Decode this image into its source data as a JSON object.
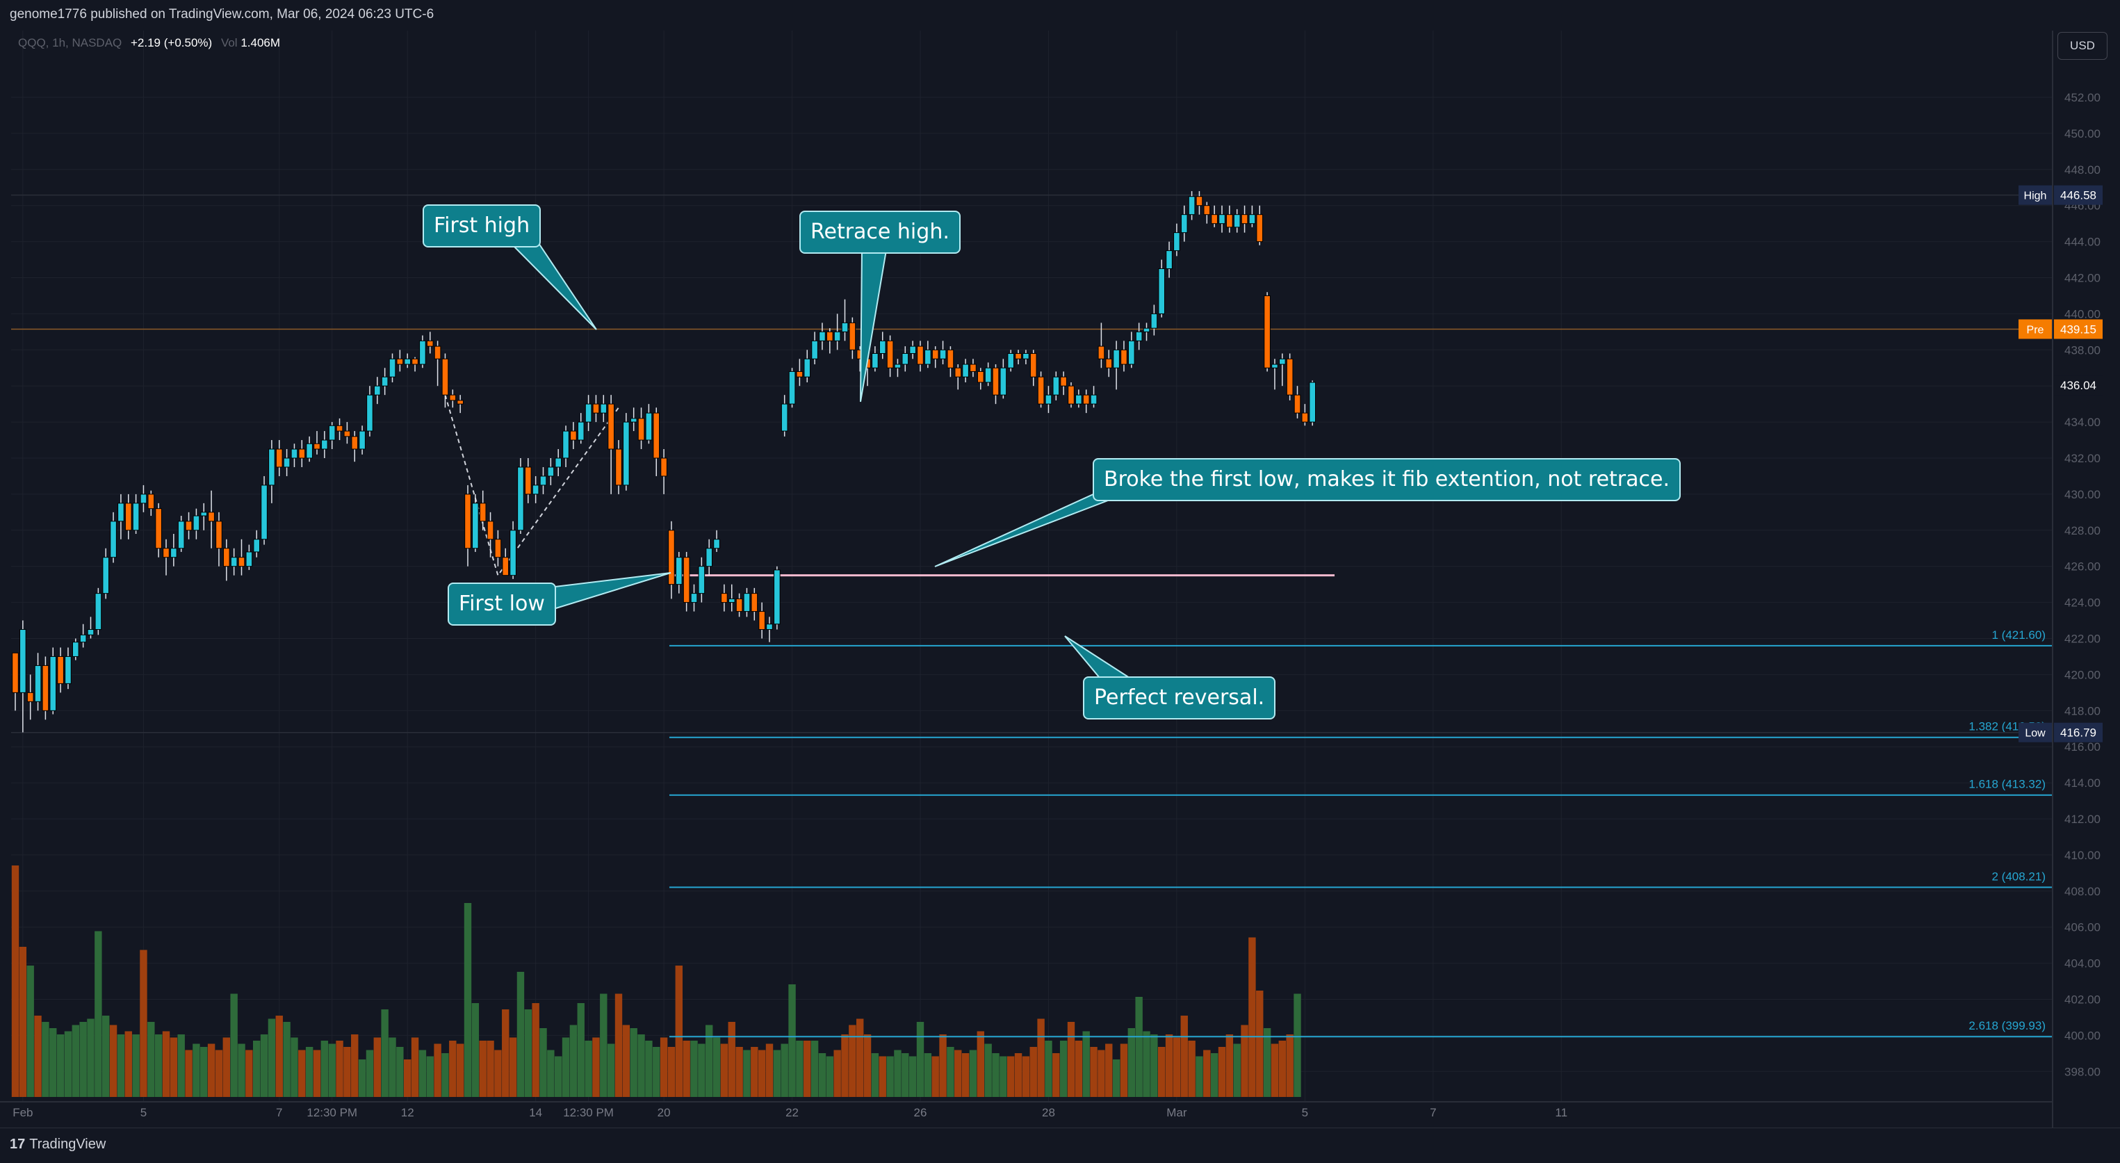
{
  "header": {
    "published": "genome1776 published on TradingView.com, Mar 06, 2024 06:23 UTC-6"
  },
  "legend": {
    "symbol": "QQQ, 1h, NASDAQ",
    "change": "+2.19 (+0.50%)",
    "vol_label": "Vol",
    "vol_value": "1.406M"
  },
  "currency": "USD",
  "footer": {
    "logo": "17",
    "brand": "TradingView"
  },
  "colors": {
    "up": "#22ab94",
    "up_body": "#26c6da",
    "down": "#f7525f",
    "down_body": "#ff6d00",
    "background": "#131722",
    "grid": "#1e222d",
    "callout": "#0e7f8c",
    "fib": "#26a6d1",
    "vol_up": "#2e6b3a",
    "vol_down": "#a0400f"
  },
  "callouts": {
    "first_high": "First high",
    "retrace_high": "Retrace high.",
    "broke_low": "Broke the first low, makes it fib extention, not retrace.",
    "first_low": "First low",
    "perfect_reversal": "Perfect reversal."
  },
  "chart_data": {
    "type": "candlestick",
    "symbol": "QQQ",
    "interval": "1h",
    "exchange": "NASDAQ",
    "y_axis": {
      "range": [
        397,
        454
      ],
      "ticks": [
        398,
        400,
        402,
        404,
        406,
        408,
        410,
        412,
        414,
        416,
        418,
        420,
        422,
        424,
        426,
        428,
        430,
        432,
        434,
        436,
        438,
        440,
        442,
        444,
        446,
        448,
        450,
        452
      ],
      "tick_labels": [
        "398.00",
        "400.00",
        "402.00",
        "404.00",
        "406.00",
        "408.00",
        "410.00",
        "412.00",
        "414.00",
        "416.00",
        "418.00",
        "420.00",
        "422.00",
        "424.00",
        "426.00",
        "428.00",
        "430.00",
        "432.00",
        "434.00",
        "436.00",
        "438.00",
        "440.00",
        "442.00",
        "444.00",
        "446.00",
        "448.00",
        "450.00",
        "452.00"
      ]
    },
    "x_axis": {
      "ticks": [
        {
          "label": "Feb",
          "bar": 1
        },
        {
          "label": "5",
          "bar": 17
        },
        {
          "label": "7",
          "bar": 35
        },
        {
          "label": "12:30 PM",
          "bar": 42
        },
        {
          "label": "12",
          "bar": 52
        },
        {
          "label": "14",
          "bar": 69
        },
        {
          "label": "12:30 PM",
          "bar": 76
        },
        {
          "label": "20",
          "bar": 86
        },
        {
          "label": "22",
          "bar": 103
        },
        {
          "label": "26",
          "bar": 120
        },
        {
          "label": "28",
          "bar": 137
        },
        {
          "label": "Mar",
          "bar": 154
        },
        {
          "label": "5",
          "bar": 171
        },
        {
          "label": "7",
          "bar": 188
        },
        {
          "label": "11",
          "bar": 205
        }
      ]
    },
    "price_labels": [
      {
        "tag": "High",
        "value": "446.58",
        "level": 446.58
      },
      {
        "tag": "Pre",
        "value": "439.15",
        "level": 439.15
      },
      {
        "tag": "",
        "value": "436.04",
        "level": 436.04
      },
      {
        "tag": "Low",
        "value": "416.79",
        "level": 416.79
      }
    ],
    "horizontal_lines": [
      {
        "name": "first-low-line",
        "level": 425.5
      }
    ],
    "fib_levels": [
      {
        "label": "1 (421.60)",
        "level": 421.6
      },
      {
        "label": "1.382 (416.52)",
        "level": 416.52
      },
      {
        "label": "1.618 (413.32)",
        "level": 413.32
      },
      {
        "label": "2 (408.21)",
        "level": 408.21
      },
      {
        "label": "2.618 (399.93)",
        "level": 399.93
      }
    ],
    "candles": [
      [
        421.2,
        419,
        420.5,
        418
      ],
      [
        419,
        422.5,
        423,
        416.8
      ],
      [
        419,
        418.5,
        420,
        417.5
      ],
      [
        418.5,
        420.5,
        421.2,
        418
      ],
      [
        420.5,
        418,
        421,
        417.5
      ],
      [
        418,
        421,
        421.5,
        417.8
      ],
      [
        421,
        419.5,
        421.5,
        419
      ],
      [
        419.5,
        421,
        421.5,
        419.2
      ],
      [
        421,
        421.8,
        422,
        420.8
      ],
      [
        421.8,
        422.2,
        422.8,
        421.5
      ],
      [
        422.2,
        422.5,
        423.2,
        422
      ],
      [
        422.5,
        424.5,
        424.8,
        422.2
      ],
      [
        424.5,
        426.5,
        427,
        424.2
      ],
      [
        426.5,
        428.5,
        429,
        426.2
      ],
      [
        428.5,
        429.5,
        430,
        427.5
      ],
      [
        429.5,
        428,
        430,
        427.5
      ],
      [
        428,
        429.5,
        430,
        427.8
      ],
      [
        429.5,
        430,
        430.5,
        429
      ],
      [
        430,
        429.2,
        430.2,
        428.8
      ],
      [
        429.2,
        427,
        429.5,
        426.5
      ],
      [
        427,
        426.5,
        427.5,
        425.5
      ],
      [
        426.5,
        427,
        427.8,
        426
      ],
      [
        427,
        428.5,
        428.8,
        426.8
      ],
      [
        428.5,
        428,
        429,
        427.5
      ],
      [
        428,
        428.8,
        429.2,
        427.5
      ],
      [
        428.8,
        429,
        429.5,
        428
      ],
      [
        429,
        428.5,
        430.2,
        427
      ],
      [
        428.5,
        427,
        429,
        426
      ],
      [
        427,
        426,
        427.5,
        425.2
      ],
      [
        426,
        426.5,
        427,
        425.5
      ],
      [
        426.5,
        426,
        427.5,
        425.5
      ],
      [
        426,
        426.8,
        427.2,
        425.8
      ],
      [
        426.8,
        427.5,
        428,
        426.5
      ],
      [
        427.5,
        430.5,
        431,
        427.2
      ],
      [
        430.5,
        432.5,
        433,
        429.5
      ],
      [
        432.5,
        431.5,
        433,
        431
      ],
      [
        431.5,
        432,
        432.5,
        431
      ],
      [
        432,
        432.5,
        432.8,
        431.5
      ],
      [
        432.5,
        432,
        433,
        431.5
      ],
      [
        432,
        432.8,
        433.2,
        431.8
      ],
      [
        432.8,
        432.5,
        433.5,
        432.2
      ],
      [
        432.5,
        433,
        433.5,
        432
      ],
      [
        433,
        433.8,
        434,
        432.5
      ],
      [
        433.8,
        433.5,
        434.2,
        433
      ],
      [
        433.5,
        433.2,
        434,
        432.8
      ],
      [
        433.2,
        432.5,
        433.5,
        431.8
      ],
      [
        432.5,
        433.5,
        433.8,
        432.2
      ],
      [
        433.5,
        435.5,
        436,
        433.2
      ],
      [
        435.5,
        436,
        436.5,
        435
      ],
      [
        436,
        436.5,
        437,
        435.5
      ],
      [
        436.5,
        437.5,
        437.8,
        436.2
      ],
      [
        437.5,
        437.2,
        438,
        436.8
      ],
      [
        437.2,
        437.5,
        437.8,
        437
      ],
      [
        437.5,
        437.2,
        437.6,
        436.8
      ],
      [
        437.2,
        438.5,
        438.8,
        437
      ],
      [
        438.5,
        438.2,
        439,
        437.8
      ],
      [
        438.2,
        437.5,
        438.5,
        436
      ],
      [
        437.5,
        435.5,
        437.8,
        434.8
      ],
      [
        435.5,
        435.2,
        435.8,
        434.8
      ],
      [
        435.2,
        435,
        435.5,
        434.5
      ],
      [
        430,
        427,
        430.5,
        426
      ],
      [
        427,
        429.5,
        430,
        426.8
      ],
      [
        429.5,
        428.5,
        430.2,
        428
      ],
      [
        428.5,
        427.5,
        429,
        426.5
      ],
      [
        427.5,
        426.5,
        428,
        426
      ],
      [
        426.5,
        425.5,
        427,
        425.5
      ],
      [
        425.5,
        428,
        428.5,
        425.3
      ],
      [
        428,
        431.5,
        432,
        427.8
      ],
      [
        431.5,
        430,
        432,
        429.5
      ],
      [
        430,
        430.5,
        431,
        429.5
      ],
      [
        430.5,
        431,
        431.5,
        430
      ],
      [
        431,
        431.5,
        432,
        430.5
      ],
      [
        431.5,
        432,
        432.5,
        431
      ],
      [
        432,
        433.5,
        433.8,
        431.5
      ],
      [
        433.5,
        433,
        434,
        432.5
      ],
      [
        433,
        434,
        434.5,
        432.8
      ],
      [
        434,
        435,
        435.5,
        433.5
      ],
      [
        435,
        434.5,
        435.5,
        434
      ],
      [
        434.5,
        435,
        435.5,
        434
      ],
      [
        435,
        432.5,
        435.5,
        430
      ],
      [
        432.5,
        430.5,
        433,
        430
      ],
      [
        430.5,
        434,
        434.5,
        430.2
      ],
      [
        434,
        434.2,
        434.8,
        433.5
      ],
      [
        434.2,
        433,
        434.8,
        432.5
      ],
      [
        433,
        434.5,
        435,
        432.8
      ],
      [
        434.5,
        432,
        434.8,
        431
      ],
      [
        432,
        431,
        432.5,
        430
      ],
      [
        428,
        425,
        428.5,
        424.2
      ],
      [
        425,
        426.5,
        426.8,
        424.5
      ],
      [
        426.5,
        424,
        426.8,
        423.5
      ],
      [
        424,
        424.5,
        425,
        423.5
      ],
      [
        424.5,
        426,
        426.5,
        424
      ],
      [
        426,
        427,
        427.5,
        425.5
      ],
      [
        427,
        427.5,
        428,
        426.8
      ],
      [
        424.5,
        424,
        425,
        423.5
      ],
      [
        424,
        424.2,
        425,
        423.5
      ],
      [
        424.2,
        423.5,
        424.5,
        423.2
      ],
      [
        423.5,
        424.5,
        424.8,
        423.2
      ],
      [
        424.5,
        423.5,
        424.8,
        423
      ],
      [
        423.5,
        422.5,
        424,
        422
      ],
      [
        422.5,
        422.8,
        423.2,
        421.8
      ],
      [
        422.8,
        425.8,
        426,
        422.5
      ],
      [
        433.5,
        435,
        435.5,
        433.2
      ],
      [
        435,
        436.8,
        437,
        434.8
      ],
      [
        436.8,
        436.5,
        437.5,
        436
      ],
      [
        436.5,
        437.5,
        438,
        436.2
      ],
      [
        437.5,
        438.5,
        439,
        437.2
      ],
      [
        438.5,
        439,
        439.5,
        438
      ],
      [
        439,
        438.5,
        439.2,
        437.8
      ],
      [
        438.5,
        439,
        440,
        438
      ],
      [
        439,
        439.5,
        440.8,
        438.5
      ],
      [
        439.5,
        438,
        439.8,
        437.5
      ],
      [
        438,
        437.5,
        438.2,
        436.8
      ],
      [
        437.5,
        437,
        438,
        436
      ],
      [
        437,
        437.8,
        438.2,
        436.8
      ],
      [
        437.8,
        438.5,
        439,
        437.5
      ],
      [
        438.5,
        437,
        438.8,
        436.5
      ],
      [
        437,
        437.2,
        437.5,
        436.5
      ],
      [
        437.2,
        437.8,
        438.2,
        436.8
      ],
      [
        437.8,
        438.2,
        438.5,
        437.5
      ],
      [
        438.2,
        437.2,
        438.5,
        436.8
      ],
      [
        437.2,
        438,
        438.5,
        437
      ],
      [
        438,
        437.5,
        438.2,
        437
      ],
      [
        437.5,
        438,
        438.5,
        437.2
      ],
      [
        438,
        437,
        438.2,
        436.5
      ],
      [
        437,
        436.5,
        437.2,
        435.8
      ],
      [
        436.5,
        437.2,
        437.5,
        436.2
      ],
      [
        437.2,
        436.8,
        437.5,
        436.5
      ],
      [
        436.8,
        436.2,
        437,
        435.8
      ],
      [
        436.2,
        437,
        437.3,
        436
      ],
      [
        437,
        435.5,
        437.2,
        435
      ],
      [
        435.5,
        437,
        437.5,
        435.3
      ],
      [
        437,
        437.8,
        438,
        436.8
      ],
      [
        437.8,
        437.5,
        438,
        437.2
      ],
      [
        437.5,
        437.8,
        438,
        437.2
      ],
      [
        437.8,
        436.5,
        438,
        436
      ],
      [
        436.5,
        435,
        436.8,
        434.8
      ],
      [
        435,
        435.5,
        436,
        434.5
      ],
      [
        435.5,
        436.5,
        436.8,
        435.2
      ],
      [
        436.5,
        436,
        436.8,
        435.5
      ],
      [
        436,
        435,
        436.2,
        434.8
      ],
      [
        435,
        435.5,
        435.8,
        434.8
      ],
      [
        435.5,
        435,
        435.8,
        434.5
      ],
      [
        435,
        435.5,
        436,
        434.8
      ],
      [
        438.2,
        437.5,
        439.5,
        437
      ],
      [
        437.5,
        437,
        438,
        436.5
      ],
      [
        437,
        438,
        438.5,
        435.8
      ],
      [
        438,
        437.2,
        438.5,
        436.8
      ],
      [
        437.2,
        438.5,
        439,
        437
      ],
      [
        438.5,
        439,
        439.5,
        438
      ],
      [
        439,
        439.2,
        439.5,
        438.5
      ],
      [
        439.2,
        440,
        440.5,
        438.8
      ],
      [
        440,
        442.5,
        443,
        439.8
      ],
      [
        442.5,
        443.5,
        444,
        442
      ],
      [
        443.5,
        444.5,
        445,
        443.2
      ],
      [
        444.5,
        445.5,
        446,
        444
      ],
      [
        445.5,
        446.5,
        446.8,
        445.2
      ],
      [
        446.5,
        446,
        446.8,
        445.5
      ],
      [
        446,
        445.5,
        446.2,
        445
      ],
      [
        445.5,
        445,
        446,
        444.8
      ],
      [
        445,
        445.5,
        446,
        444.5
      ],
      [
        445.5,
        444.8,
        446,
        444.5
      ],
      [
        444.8,
        445.5,
        445.8,
        444.5
      ],
      [
        445.5,
        445,
        446,
        444.5
      ],
      [
        445,
        445.5,
        446,
        444.8
      ],
      [
        445.5,
        444,
        446,
        443.8
      ],
      [
        441,
        437,
        441.2,
        436.8
      ],
      [
        437,
        437.2,
        437.5,
        435.8
      ],
      [
        437.2,
        437.5,
        437.8,
        436
      ],
      [
        437.5,
        435.5,
        437.8,
        435.2
      ],
      [
        435.5,
        434.5,
        436,
        434.2
      ],
      [
        434.5,
        434,
        435,
        433.8
      ],
      [
        434,
        436.2,
        436.3,
        433.8
      ]
    ],
    "volume": [
      "d:14.8",
      "d:9.6",
      "u:8.4",
      "d:5.2",
      "u:4.8",
      "u:4.4",
      "u:4.0",
      "u:4.2",
      "u:4.6",
      "u:4.8",
      "u:5.0",
      "u:10.6",
      "u:5.2",
      "d:4.6",
      "u:4.0",
      "d:4.2",
      "u:4.0",
      "d:9.4",
      "u:4.8",
      "u:4.0",
      "d:4.2",
      "d:3.8",
      "u:4.0",
      "d:3.0",
      "u:3.4",
      "u:3.2",
      "d:3.4",
      "d:3.0",
      "d:3.8",
      "u:6.6",
      "u:3.4",
      "d:3.0",
      "u:3.6",
      "u:4.0",
      "u:5.0",
      "d:5.2",
      "u:4.8",
      "u:3.8",
      "d:3.0",
      "u:3.2",
      "d:3.0",
      "u:3.6",
      "u:3.4",
      "d:3.6",
      "d:3.2",
      "d:4.0",
      "u:2.4",
      "u:3.0",
      "d:3.8",
      "u:5.6",
      "u:3.8",
      "u:3.2",
      "d:2.4",
      "d:3.8",
      "u:3.0",
      "u:2.6",
      "d:3.4",
      "u:2.8",
      "d:3.6",
      "d:3.4",
      "u:12.4",
      "u:6.0",
      "d:3.6",
      "d:3.6",
      "d:3.0",
      "d:5.6",
      "d:3.8",
      "u:8.0",
      "u:5.6",
      "d:6.0",
      "u:4.4",
      "u:3.0",
      "u:2.6",
      "u:3.8",
      "u:4.6",
      "u:6.0",
      "u:3.6",
      "d:3.8",
      "u:6.6",
      "u:3.4",
      "d:6.6",
      "d:4.6",
      "u:4.4",
      "u:4.0",
      "u:3.6",
      "u:3.2",
      "d:3.8",
      "d:3.2",
      "d:8.4",
      "d:3.6",
      "u:3.6",
      "u:3.4",
      "u:4.6",
      "u:3.8",
      "d:3.4",
      "d:4.8",
      "d:3.2",
      "u:3.0",
      "d:3.2",
      "d:3.0",
      "d:3.4",
      "u:3.0",
      "u:3.4",
      "u:7.2",
      "u:3.6",
      "d:3.6",
      "u:3.6",
      "u:2.8",
      "u:2.6",
      "d:3.0",
      "d:4.0",
      "d:4.6",
      "d:5.0",
      "d:4.0",
      "u:2.8",
      "d:2.6",
      "u:2.6",
      "u:3.0",
      "u:2.8",
      "u:2.6",
      "u:4.8",
      "u:2.8",
      "d:2.6",
      "d:4.0",
      "u:3.2",
      "d:3.0",
      "d:2.8",
      "u:3.0",
      "d:4.2",
      "u:3.4",
      "u:2.8",
      "u:2.6",
      "d:2.6",
      "d:2.8",
      "d:2.6",
      "d:3.2",
      "d:5.0",
      "u:3.6",
      "d:2.8",
      "u:3.6",
      "d:4.8",
      "d:3.6",
      "u:4.2",
      "d:3.2",
      "d:3.0",
      "d:3.4",
      "u:2.4",
      "d:3.4",
      "u:4.4",
      "u:6.4",
      "u:4.2",
      "u:4.0",
      "d:3.2",
      "d:4.0",
      "d:3.8",
      "d:5.2",
      "d:3.6",
      "u:2.6",
      "d:3.0",
      "u:2.8",
      "d:3.2",
      "d:4.0",
      "u:3.4",
      "d:4.6",
      "d:10.2",
      "d:6.8",
      "u:4.4",
      "d:3.4",
      "d:3.6",
      "d:4.0",
      "u:6.6"
    ]
  }
}
